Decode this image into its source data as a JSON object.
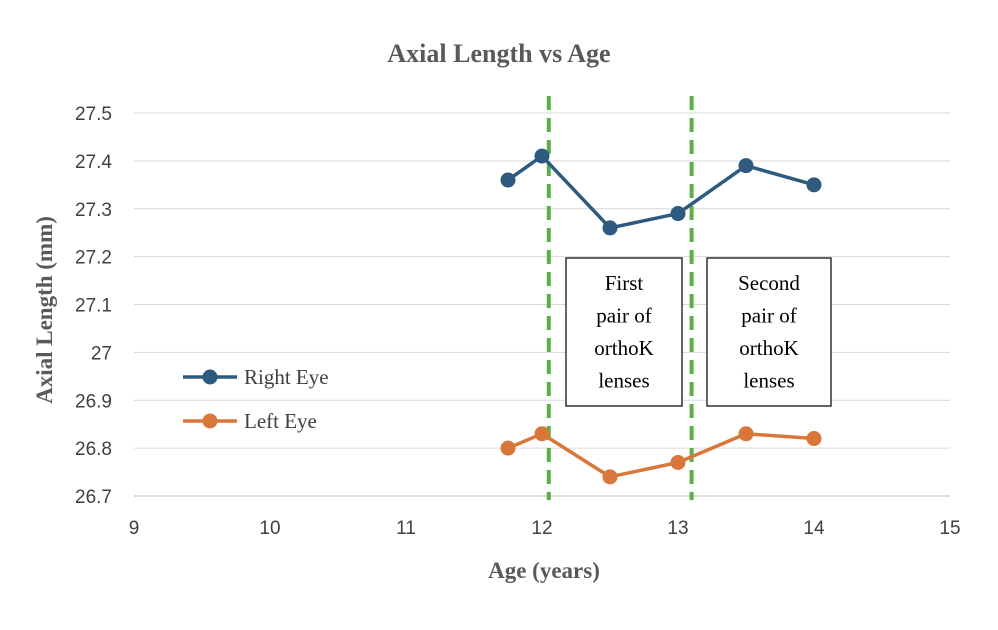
{
  "chart_data": {
    "type": "scatter",
    "title": "Axial Length vs Age",
    "xlabel": "Age (years)",
    "ylabel": "Axial Length (mm)",
    "xlim": [
      9,
      15
    ],
    "ylim": [
      26.7,
      27.5
    ],
    "x_ticks": [
      "9",
      "10",
      "11",
      "12",
      "13",
      "14",
      "15"
    ],
    "y_ticks": [
      "26.7",
      "26.8",
      "26.9",
      "27",
      "27.1",
      "27.2",
      "27.3",
      "27.4",
      "27.5"
    ],
    "grid": "horizontal",
    "legend_position": "left",
    "series": [
      {
        "name": "Right Eye",
        "color": "#2E5A7F",
        "x": [
          11.75,
          12.0,
          12.5,
          13.0,
          13.5,
          14.0
        ],
        "y": [
          27.36,
          27.41,
          27.26,
          27.29,
          27.39,
          27.35
        ]
      },
      {
        "name": "Left Eye",
        "color": "#D9773A",
        "x": [
          11.75,
          12.0,
          12.5,
          13.0,
          13.5,
          14.0
        ],
        "y": [
          26.8,
          26.83,
          26.74,
          26.77,
          26.83,
          26.82
        ]
      }
    ],
    "vertical_lines": [
      {
        "x": 12.05,
        "color": "#5BAF4B",
        "style": "dashed"
      },
      {
        "x": 13.1,
        "color": "#5BAF4B",
        "style": "dashed"
      }
    ],
    "annotations": [
      {
        "lines": [
          "First",
          "pair of",
          "orthoK",
          "lenses"
        ]
      },
      {
        "lines": [
          "Second",
          "pair of",
          "orthoK",
          "lenses"
        ]
      }
    ]
  }
}
